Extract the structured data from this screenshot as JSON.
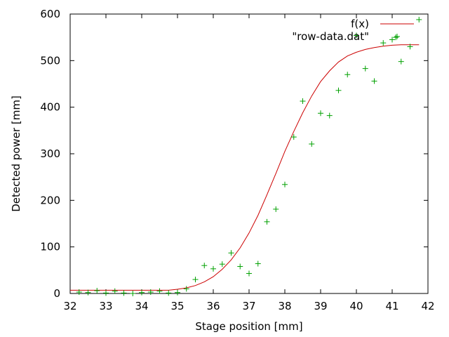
{
  "chart_data": {
    "type": "scatter",
    "title": "",
    "xlabel": "Stage position [mm]",
    "ylabel": "Detected power [mm]",
    "xlim": [
      32,
      42
    ],
    "ylim": [
      0,
      600
    ],
    "x_ticks": [
      32,
      33,
      34,
      35,
      36,
      37,
      38,
      39,
      40,
      41,
      42
    ],
    "y_ticks": [
      0,
      100,
      200,
      300,
      400,
      500,
      600
    ],
    "grid": false,
    "legend_position": "top-right",
    "series": [
      {
        "name": "f(x)",
        "kind": "line",
        "color": "#cc0000",
        "x": [
          32.0,
          32.25,
          32.5,
          32.75,
          33.0,
          33.25,
          33.5,
          33.75,
          34.0,
          34.25,
          34.5,
          34.75,
          35.0,
          35.25,
          35.5,
          35.75,
          36.0,
          36.25,
          36.5,
          36.75,
          37.0,
          37.25,
          37.5,
          37.75,
          38.0,
          38.25,
          38.5,
          38.75,
          39.0,
          39.25,
          39.5,
          39.75,
          40.0,
          40.25,
          40.5,
          40.75,
          41.0,
          41.25,
          41.5,
          41.75
        ],
        "y": [
          7,
          7,
          7,
          7,
          7,
          7,
          7,
          7,
          7,
          7,
          7,
          7,
          9,
          12,
          17,
          25,
          36,
          52,
          72,
          98,
          130,
          168,
          212,
          258,
          305,
          348,
          388,
          424,
          455,
          478,
          497,
          510,
          518,
          524,
          528,
          531,
          533,
          534,
          534,
          534
        ]
      },
      {
        "name": "\"row-data.dat\"",
        "kind": "scatter",
        "color": "#00a000",
        "x": [
          32.25,
          32.5,
          32.75,
          33.0,
          33.25,
          33.5,
          33.75,
          34.0,
          34.25,
          34.5,
          34.75,
          35.0,
          35.25,
          35.5,
          35.75,
          36.0,
          36.25,
          36.5,
          36.75,
          37.0,
          37.25,
          37.5,
          37.75,
          38.0,
          38.25,
          38.5,
          38.75,
          39.0,
          39.25,
          39.5,
          39.75,
          40.0,
          40.25,
          40.5,
          40.75,
          41.0,
          41.1,
          41.25,
          41.5,
          41.75
        ],
        "y": [
          3,
          2,
          6,
          1,
          5,
          1,
          0,
          2,
          3,
          5,
          1,
          2,
          10,
          30,
          60,
          53,
          63,
          87,
          58,
          43,
          64,
          154,
          181,
          234,
          336,
          413,
          321,
          387,
          382,
          436,
          470,
          554,
          483,
          456,
          538,
          545,
          550,
          498,
          530,
          588
        ]
      }
    ]
  }
}
